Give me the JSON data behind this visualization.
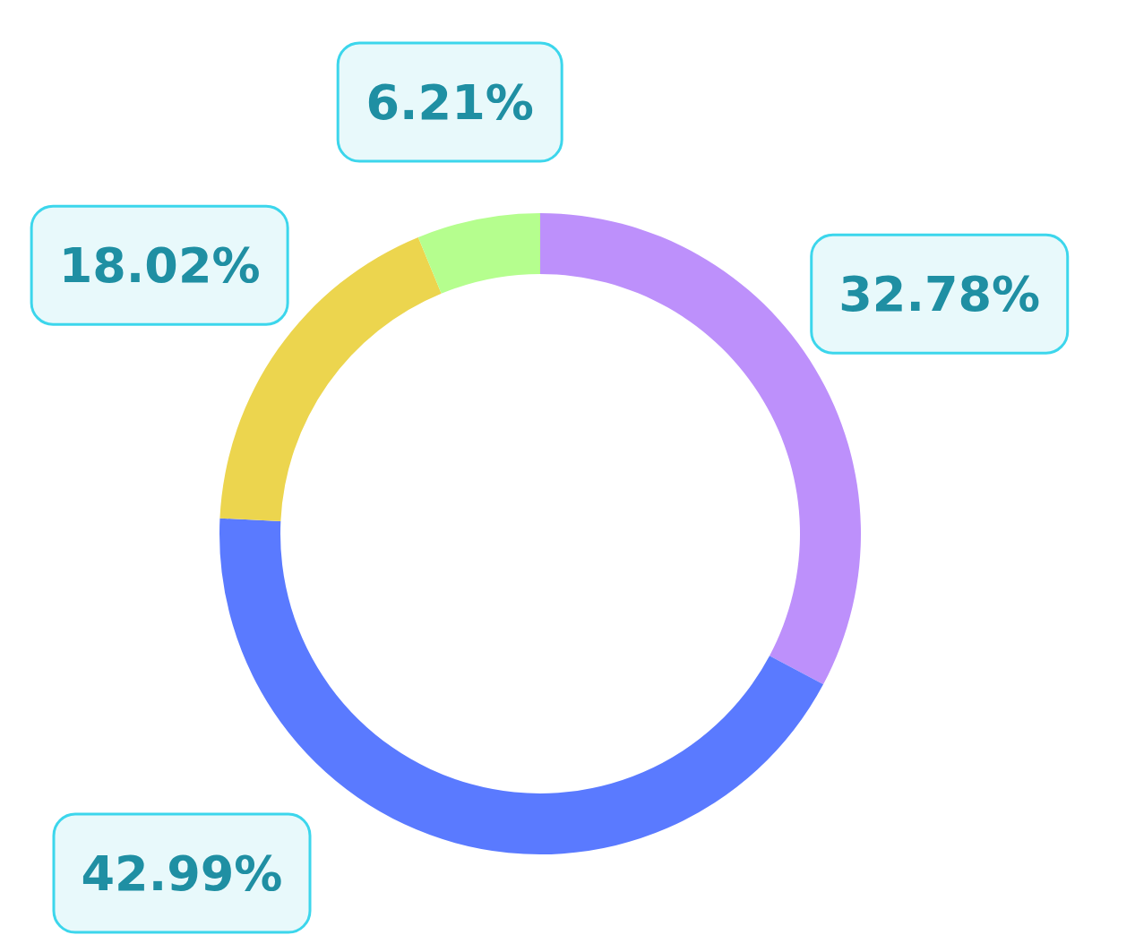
{
  "chart_data": {
    "type": "donut",
    "categories": [
      null,
      null,
      null,
      null
    ],
    "values": [
      32.78,
      42.99,
      18.02,
      6.21
    ],
    "colors": [
      "#bd90fb",
      "#5a7aff",
      "#ecd54e",
      "#b5fe8e"
    ],
    "value_labels": [
      "32.78%",
      "42.99%",
      "18.02%",
      "6.21%"
    ]
  }
}
